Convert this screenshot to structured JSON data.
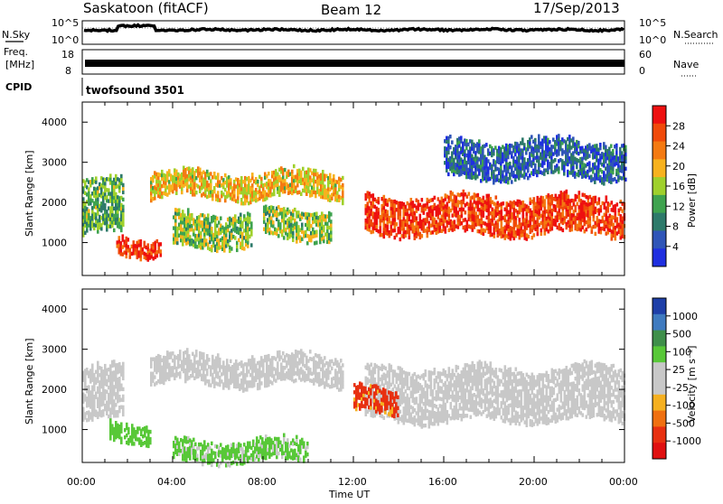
{
  "header": {
    "station": "Saskatoon (fitACF)",
    "beam": "Beam 12",
    "date": "17/Sep/2013"
  },
  "noise_panel": {
    "left_label": "N.Sky",
    "right_label": "N.Search",
    "left_ticks": [
      "10^5",
      "10^0"
    ],
    "right_ticks": [
      "10^5",
      "10^0"
    ]
  },
  "freq_panel": {
    "left_label_1": "Freq.",
    "left_label_2": "[MHz]",
    "right_label": "Nave",
    "left_ticks": [
      "18",
      "8"
    ],
    "right_ticks": [
      "60",
      "0"
    ]
  },
  "cpid": {
    "label": "CPID",
    "value": "twofsound 3501"
  },
  "axes": {
    "ylabel": "Slant Range [km]",
    "xlabel": "Time UT",
    "y_ticks": [
      "4000",
      "3000",
      "2000",
      "1000"
    ],
    "x_ticks": [
      "00:00",
      "04:00",
      "08:00",
      "12:00",
      "16:00",
      "20:00",
      "00:00"
    ]
  },
  "power_scale": {
    "title": "Power [dB]",
    "labels": [
      "28",
      "24",
      "20",
      "16",
      "12",
      "8",
      "4"
    ],
    "colors": [
      "#ee1010",
      "#f04a0a",
      "#f47a12",
      "#f7b21e",
      "#9fd02c",
      "#3fa34f",
      "#2d7a6a",
      "#2f55b8",
      "#1f2fe0"
    ]
  },
  "velocity_scale": {
    "title": "Velocity [m s⁻¹]",
    "labels": [
      "1000",
      "500",
      "100",
      "25",
      "-25",
      "-100",
      "-500",
      "-1000"
    ],
    "colors": [
      "#1e3fa8",
      "#3f7bc0",
      "#3f8f4a",
      "#58c838",
      "#c8c8c8",
      "#c8c8c8",
      "#f5b020",
      "#f07010",
      "#e83010",
      "#e01010"
    ]
  },
  "chart_data": [
    {
      "type": "heatmap",
      "title": "Power [dB]",
      "xlabel": "Time UT",
      "ylabel": "Slant Range [km]",
      "xlim": [
        "00:00",
        "24:00"
      ],
      "ylim": [
        180,
        4500
      ],
      "color_range": [
        0,
        30
      ],
      "bands": [
        {
          "t0": 0.0,
          "t1": 1.8,
          "r_low": 1200,
          "r_high": 2500,
          "power": 12
        },
        {
          "t0": 1.5,
          "t1": 3.5,
          "r_low": 700,
          "r_high": 1100,
          "power": 26
        },
        {
          "t0": 3.0,
          "t1": 11.5,
          "r_low": 2100,
          "r_high": 2700,
          "power": 18
        },
        {
          "t0": 4.0,
          "t1": 7.5,
          "r_low": 900,
          "r_high": 1700,
          "power": 14
        },
        {
          "t0": 8.0,
          "t1": 11.0,
          "r_low": 1100,
          "r_high": 1800,
          "power": 14
        },
        {
          "t0": 12.5,
          "t1": 24.0,
          "r_low": 1200,
          "r_high": 2100,
          "power": 26
        },
        {
          "t0": 16.0,
          "t1": 24.0,
          "r_low": 2600,
          "r_high": 3500,
          "power": 6
        }
      ]
    },
    {
      "type": "heatmap",
      "title": "Velocity [m s⁻¹]",
      "xlabel": "Time UT",
      "ylabel": "Slant Range [km]",
      "xlim": [
        "00:00",
        "24:00"
      ],
      "ylim": [
        180,
        4500
      ],
      "color_range": [
        -1000,
        1000
      ],
      "bands": [
        {
          "t0": 0.0,
          "t1": 1.8,
          "r_low": 1200,
          "r_high": 2500,
          "velocity": 0
        },
        {
          "t0": 1.2,
          "t1": 3.0,
          "r_low": 700,
          "r_high": 1100,
          "velocity": 150
        },
        {
          "t0": 3.0,
          "t1": 11.5,
          "r_low": 2100,
          "r_high": 2800,
          "velocity": 0
        },
        {
          "t0": 4.0,
          "t1": 10.0,
          "r_low": 200,
          "r_high": 700,
          "velocity": 120
        },
        {
          "t0": 12.5,
          "t1": 24.0,
          "r_low": 1200,
          "r_high": 2500,
          "velocity": 0
        },
        {
          "t0": 12.0,
          "t1": 14.0,
          "r_low": 1400,
          "r_high": 2000,
          "velocity": -300
        }
      ]
    }
  ]
}
